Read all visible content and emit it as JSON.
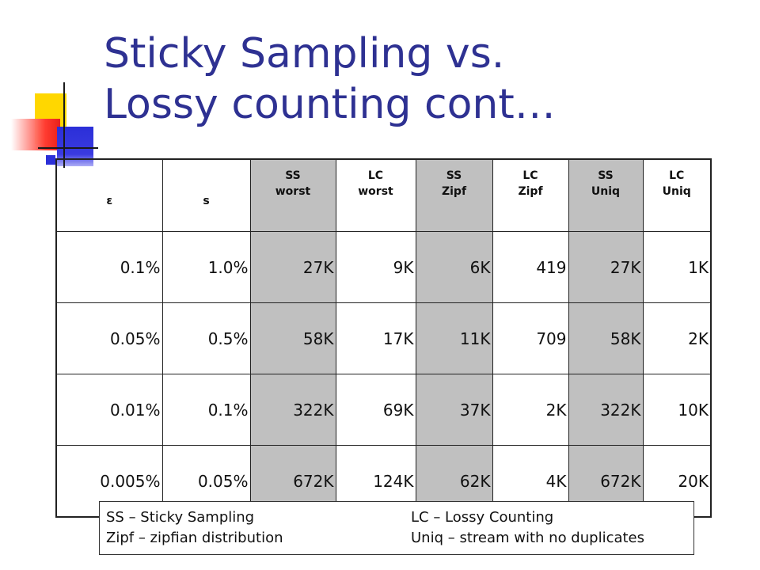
{
  "slide": {
    "title_line1": "Sticky Sampling vs.",
    "title_line2": "Lossy counting cont…"
  },
  "table": {
    "headers": [
      {
        "line1": "ε",
        "line2": ""
      },
      {
        "line1": "s",
        "line2": ""
      },
      {
        "line1": "SS",
        "line2": "worst"
      },
      {
        "line1": "LC",
        "line2": "worst"
      },
      {
        "line1": "SS",
        "line2": "Zipf"
      },
      {
        "line1": "LC",
        "line2": "Zipf"
      },
      {
        "line1": "SS",
        "line2": "Uniq"
      },
      {
        "line1": "LC",
        "line2": "Uniq"
      }
    ],
    "rows": [
      [
        "0.1%",
        "1.0%",
        "27K",
        "9K",
        "6K",
        "419",
        "27K",
        "1K"
      ],
      [
        "0.05%",
        "0.5%",
        "58K",
        "17K",
        "11K",
        "709",
        "58K",
        "2K"
      ],
      [
        "0.01%",
        "0.1%",
        "322K",
        "69K",
        "37K",
        "2K",
        "322K",
        "10K"
      ],
      [
        "0.005%",
        "0.05%",
        "672K",
        "124K",
        "62K",
        "4K",
        "672K",
        "20K"
      ]
    ]
  },
  "legend": {
    "ss": "SS – Sticky Sampling",
    "zipf": "Zipf – zipfian distribution",
    "lc": "LC – Lossy Counting",
    "uniq": "Uniq – stream with no duplicates"
  },
  "colors": {
    "title": "#2e3192",
    "shaded_column": "#c0c0c0"
  }
}
